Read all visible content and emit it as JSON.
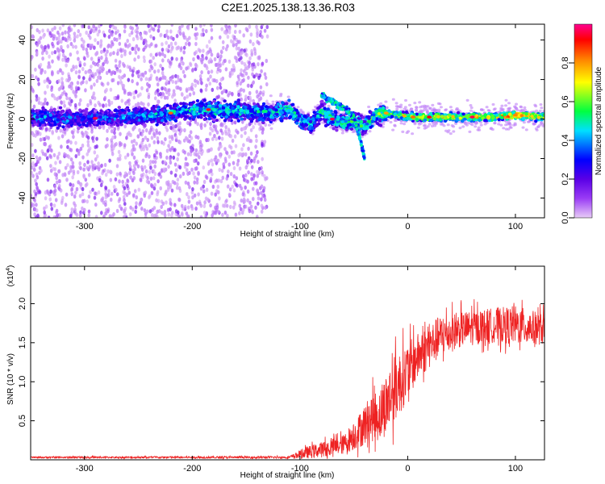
{
  "figure_title": "C2E1.2025.138.13.36.R03",
  "colors": {
    "snr_line": "#ee2222",
    "frame": "#000000"
  },
  "chart_data": [
    {
      "type": "heatmap",
      "name": "spectrogram",
      "xlabel": "Height of straight line (km)",
      "ylabel": "Frequency (Hz)",
      "xlim": [
        -350,
        127
      ],
      "ylim": [
        -50,
        48
      ],
      "xticks": [
        -300,
        -200,
        -100,
        0,
        100
      ],
      "yticks": [
        -40,
        -20,
        0,
        20,
        40
      ],
      "colorbar": {
        "label": "Normalized spectral amplitude",
        "range": [
          0,
          1
        ],
        "ticks": [
          0,
          0.2,
          0.4,
          0.6,
          0.8
        ],
        "tick_labels": [
          "0.0",
          "0.2",
          "0.4",
          "0.6",
          "0.8"
        ],
        "colormap": [
          "#e8ccf7",
          "#9a3cf5",
          "#5a00e6",
          "#0000ff",
          "#00e0ff",
          "#00ff40",
          "#ffff00",
          "#ff8000",
          "#ff0000",
          "#ff0090"
        ]
      },
      "ridge": [
        {
          "x": -350,
          "f": 1,
          "a": 0.38
        },
        {
          "x": -320,
          "f": 0,
          "a": 0.35
        },
        {
          "x": -300,
          "f": 0,
          "a": 0.32
        },
        {
          "x": -270,
          "f": 1,
          "a": 0.34
        },
        {
          "x": -250,
          "f": 1,
          "a": 0.4
        },
        {
          "x": -230,
          "f": 2,
          "a": 0.44
        },
        {
          "x": -210,
          "f": 4,
          "a": 0.42
        },
        {
          "x": -190,
          "f": 5,
          "a": 0.48
        },
        {
          "x": -170,
          "f": 4,
          "a": 0.5
        },
        {
          "x": -150,
          "f": 4,
          "a": 0.46
        },
        {
          "x": -130,
          "f": 3,
          "a": 0.44
        },
        {
          "x": -110,
          "f": 5,
          "a": 0.5
        },
        {
          "x": -100,
          "f": 0,
          "a": 0.45
        },
        {
          "x": -90,
          "f": -3,
          "a": 0.44
        },
        {
          "x": -80,
          "f": 4,
          "a": 0.48
        },
        {
          "x": -70,
          "f": 0,
          "a": 0.5
        },
        {
          "x": -60,
          "f": -2,
          "a": 0.5
        },
        {
          "x": -50,
          "f": -1,
          "a": 0.52
        },
        {
          "x": -40,
          "f": -4,
          "a": 0.48
        },
        {
          "x": -30,
          "f": 2,
          "a": 0.55
        },
        {
          "x": -20,
          "f": 3,
          "a": 0.6
        },
        {
          "x": -10,
          "f": 2,
          "a": 0.62
        },
        {
          "x": 0,
          "f": 1,
          "a": 0.68
        },
        {
          "x": 20,
          "f": 1,
          "a": 0.7
        },
        {
          "x": 40,
          "f": 1,
          "a": 0.65
        },
        {
          "x": 60,
          "f": 1,
          "a": 0.68
        },
        {
          "x": 80,
          "f": 1,
          "a": 0.7
        },
        {
          "x": 100,
          "f": 2,
          "a": 0.8
        },
        {
          "x": 127,
          "f": 1,
          "a": 0.65
        }
      ],
      "noise_region": [
        -350,
        -130
      ],
      "branch": [
        {
          "x": -80,
          "f": 12
        },
        {
          "x": -70,
          "f": 9
        },
        {
          "x": -60,
          "f": 6
        },
        {
          "x": -50,
          "f": 1
        },
        {
          "x": -45,
          "f": -8
        },
        {
          "x": -40,
          "f": -20
        }
      ]
    },
    {
      "type": "line",
      "name": "snr",
      "xlabel": "Height of straight line (km)",
      "ylabel": "SNR (10 * v/v)",
      "y_multiplier": "(x10",
      "y_multiplier_exp": "4",
      "y_multiplier_close": ")",
      "xlim": [
        -350,
        127
      ],
      "ylim": [
        0,
        2.48
      ],
      "xticks": [
        -300,
        -200,
        -100,
        0,
        100
      ],
      "yticks": [
        0.5,
        1.0,
        1.5,
        2.0
      ],
      "ytick_labels": [
        "0.5",
        "1.0",
        "1.5",
        "2.0"
      ],
      "envelope": [
        {
          "x": -350,
          "base": 0.03,
          "spread": 0.02
        },
        {
          "x": -110,
          "base": 0.03,
          "spread": 0.03
        },
        {
          "x": -95,
          "base": 0.08,
          "spread": 0.15
        },
        {
          "x": -80,
          "base": 0.12,
          "spread": 0.2
        },
        {
          "x": -60,
          "base": 0.18,
          "spread": 0.25
        },
        {
          "x": -45,
          "base": 0.35,
          "spread": 0.45
        },
        {
          "x": -35,
          "base": 0.5,
          "spread": 0.6
        },
        {
          "x": -25,
          "base": 0.55,
          "spread": 0.7
        },
        {
          "x": -15,
          "base": 0.8,
          "spread": 0.9
        },
        {
          "x": -5,
          "base": 1.0,
          "spread": 0.8
        },
        {
          "x": 10,
          "base": 1.3,
          "spread": 0.6
        },
        {
          "x": 30,
          "base": 1.55,
          "spread": 0.55
        },
        {
          "x": 50,
          "base": 1.65,
          "spread": 0.45
        },
        {
          "x": 80,
          "base": 1.7,
          "spread": 0.45
        },
        {
          "x": 100,
          "base": 1.7,
          "spread": 0.5
        },
        {
          "x": 127,
          "base": 1.65,
          "spread": 0.4
        }
      ]
    }
  ]
}
